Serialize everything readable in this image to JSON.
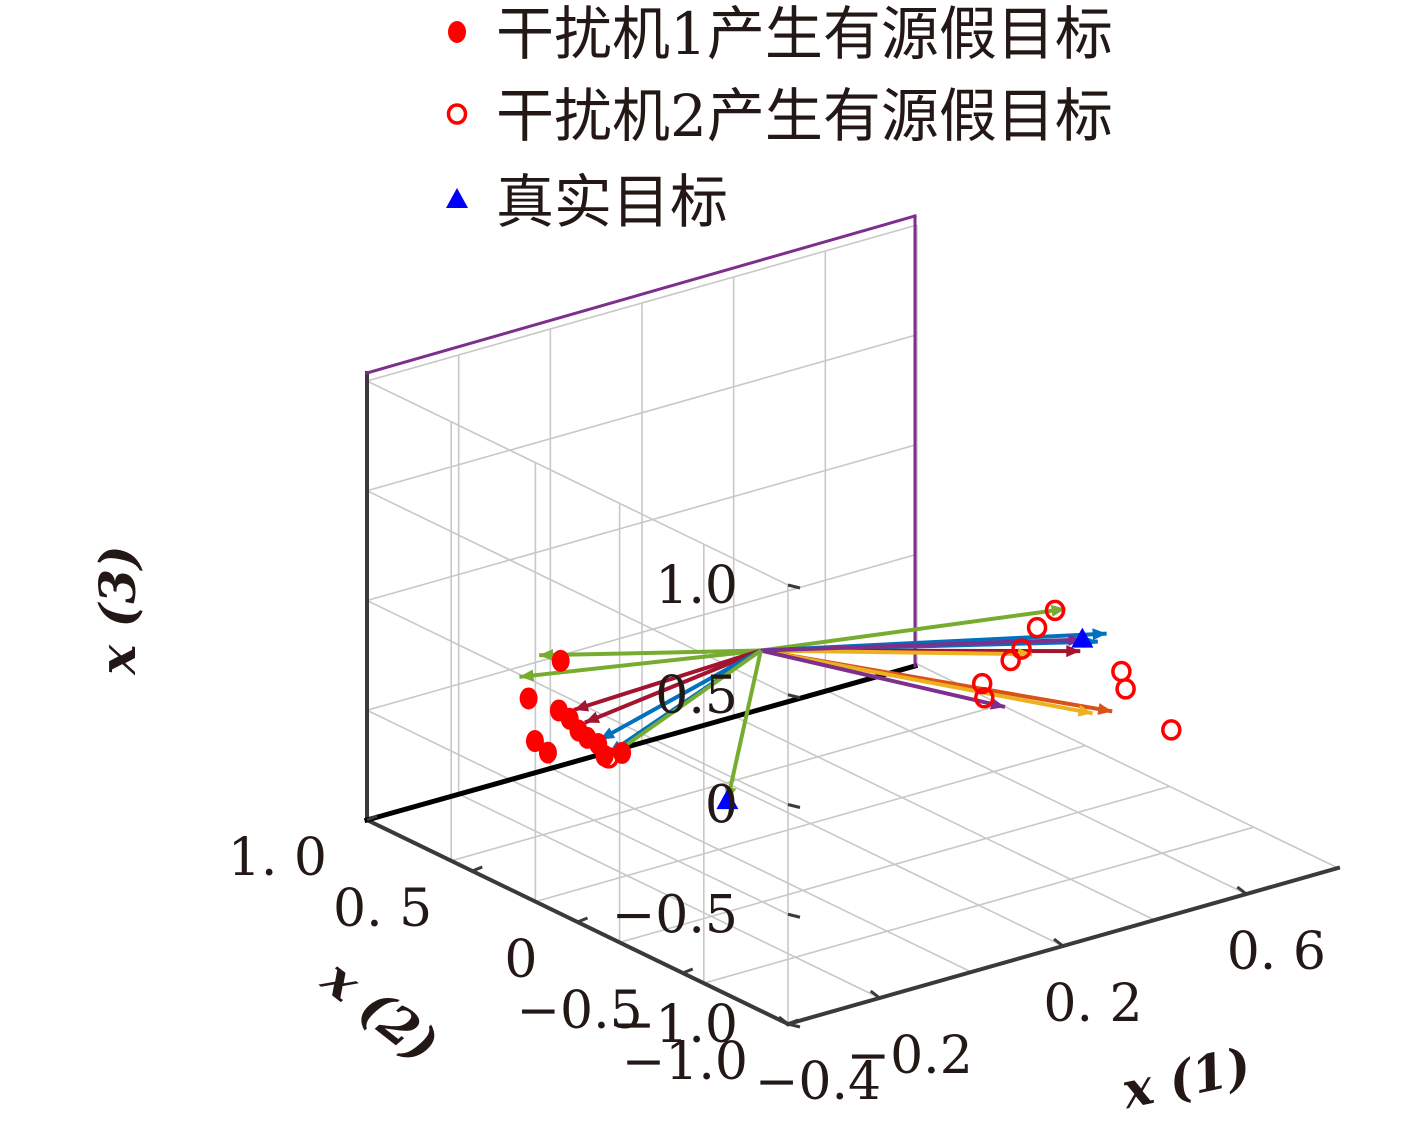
{
  "chart_data": {
    "type": "scatter3d",
    "axes": {
      "x1": {
        "label": "x (1)",
        "ticks": [
          -0.4,
          -0.2,
          0.2,
          0.6
        ],
        "tick_labels": [
          "−0.4",
          "−0.2",
          "0. 2",
          "0. 6"
        ],
        "range": [
          -0.4,
          0.8
        ]
      },
      "x2": {
        "label": "x (2)",
        "ticks": [
          -1.0,
          -0.5,
          0,
          0.5,
          1.0
        ],
        "tick_labels": [
          "−1.0",
          "−0.5",
          "0",
          "0. 5",
          "1. 0"
        ],
        "range": [
          -1.0,
          1.0
        ]
      },
      "x3": {
        "label": "x (3)",
        "ticks": [
          -1.0,
          -0.5,
          0,
          0.5,
          1.0
        ],
        "tick_labels": [
          "−1.0",
          "−0.5",
          "0",
          "0.5",
          "1.0"
        ],
        "range": [
          -1.0,
          1.0
        ]
      }
    },
    "grid": true,
    "legend": {
      "placement": "top",
      "entries": [
        {
          "label": "干扰机1产生有源假目标",
          "marker": "filled-circle",
          "color": "#ff0000"
        },
        {
          "label": "干扰机2产生有源假目标",
          "marker": "open-circle",
          "color": "#ff0000"
        },
        {
          "label": "真实目标",
          "marker": "triangle",
          "color": "#0000ff"
        }
      ]
    },
    "origin": [
      0,
      0,
      0
    ],
    "series": [
      {
        "name": "干扰机1产生有源假目标",
        "points": [
          [
            -0.23,
            0.45,
            -0.12
          ],
          [
            -0.3,
            0.45,
            -0.25
          ],
          [
            -0.28,
            0.35,
            -0.27
          ],
          [
            -0.27,
            0.32,
            -0.3
          ],
          [
            -0.26,
            0.3,
            -0.35
          ],
          [
            -0.25,
            0.28,
            -0.38
          ],
          [
            -0.24,
            0.25,
            -0.4
          ],
          [
            -0.3,
            0.42,
            -0.43
          ],
          [
            -0.29,
            0.38,
            -0.47
          ],
          [
            -0.24,
            0.22,
            -0.44
          ],
          [
            -0.22,
            0.18,
            -0.42
          ]
        ]
      },
      {
        "name": "干扰机2产生有源假目标",
        "points": [
          [
            0.55,
            -0.2,
            -0.05
          ],
          [
            0.52,
            -0.18,
            -0.12
          ],
          [
            0.5,
            -0.15,
            -0.22
          ],
          [
            0.49,
            -0.12,
            -0.28
          ],
          [
            0.58,
            -0.45,
            -0.23
          ],
          [
            0.58,
            -0.47,
            -0.3
          ],
          [
            0.46,
            -0.05,
            -0.4
          ],
          [
            0.46,
            -0.06,
            -0.46
          ],
          [
            0.62,
            -0.6,
            -0.45
          ],
          [
            -0.24,
            0.2,
            -0.44
          ]
        ]
      },
      {
        "name": "真实目标",
        "points": [
          [
            0.38,
            -0.7,
            0.15
          ],
          [
            -0.05,
            0.05,
            -0.68
          ]
        ]
      }
    ],
    "colors": [
      "#77ac30",
      "#0072bd",
      "#a2142f",
      "#edb120",
      "#d95319",
      "#7e2f8e"
    ],
    "vectors": [
      {
        "to": [
          -0.3,
          0.4,
          -0.03
        ],
        "color": "#77ac30"
      },
      {
        "to": [
          -0.32,
          0.45,
          -0.14
        ],
        "color": "#77ac30"
      },
      {
        "to": [
          -0.27,
          0.3,
          -0.25
        ],
        "color": "#a2142f"
      },
      {
        "to": [
          -0.26,
          0.27,
          -0.3
        ],
        "color": "#a2142f"
      },
      {
        "to": [
          -0.25,
          0.22,
          -0.36
        ],
        "color": "#0072bd"
      },
      {
        "to": [
          -0.24,
          0.2,
          -0.42
        ],
        "color": "#0072bd"
      },
      {
        "to": [
          -0.23,
          0.21,
          -0.44
        ],
        "color": "#77ac30"
      },
      {
        "to": [
          0.55,
          -0.25,
          -0.02
        ],
        "color": "#77ac30"
      },
      {
        "to": [
          0.58,
          -0.38,
          -0.09
        ],
        "color": "#0072bd"
      },
      {
        "to": [
          0.57,
          -0.36,
          -0.13
        ],
        "color": "#0072bd"
      },
      {
        "to": [
          0.55,
          -0.32,
          -0.18
        ],
        "color": "#a2142f"
      },
      {
        "to": [
          0.5,
          -0.2,
          -0.22
        ],
        "color": "#edb120"
      },
      {
        "to": [
          0.56,
          -0.45,
          -0.4
        ],
        "color": "#d95319"
      },
      {
        "to": [
          0.54,
          -0.4,
          -0.42
        ],
        "color": "#edb120"
      },
      {
        "to": [
          0.45,
          -0.18,
          -0.44
        ],
        "color": "#7e2f8e"
      },
      {
        "to": [
          0.38,
          -0.7,
          0.15
        ],
        "color": "#7e2f8e"
      },
      {
        "to": [
          -0.05,
          0.05,
          -0.68
        ],
        "color": "#77ac30"
      }
    ]
  }
}
